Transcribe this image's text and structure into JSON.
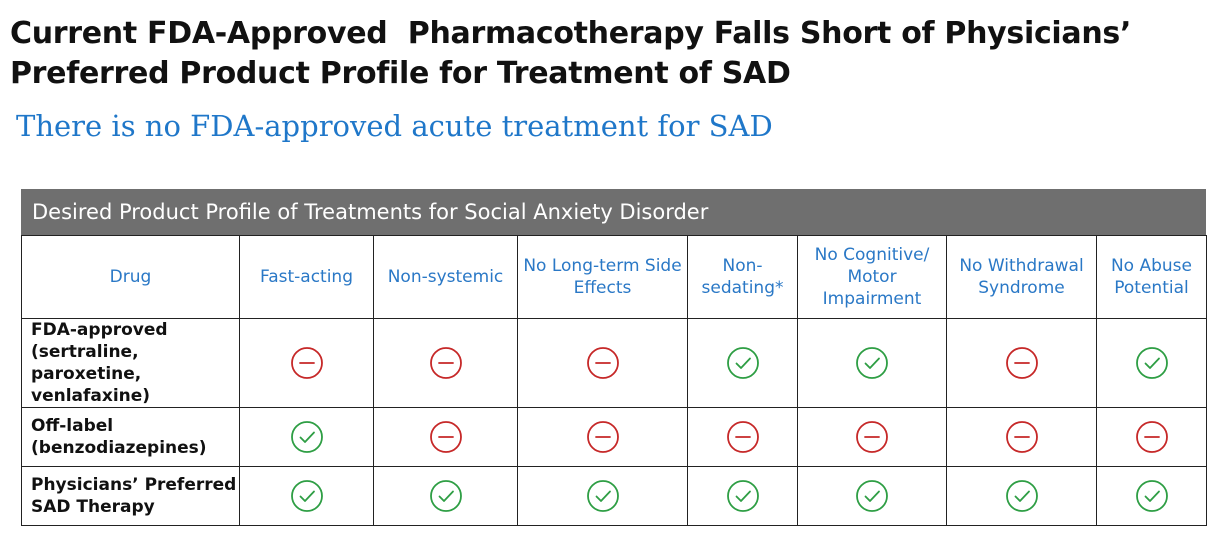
{
  "title": "Current FDA-Approved  Pharmacotherapy Falls Short of Physicians’ Preferred Product Profile for Treatment of SAD",
  "subtitle": "There is no FDA-approved acute treatment for SAD",
  "table": {
    "header": "Desired Product Profile of Treatments for Social Anxiety Disorder",
    "columns": [
      "Drug",
      "Fast-acting",
      "Non-systemic",
      "No Long-term Side Effects",
      "Non-sedating*",
      "No Cognitive/ Motor Impairment",
      "No Withdrawal Syndrome",
      "No Abuse Potential"
    ],
    "rows": [
      {
        "label": "FDA-approved (sertraline, paroxetine, venlafaxine)",
        "values": [
          "minus",
          "minus",
          "minus",
          "check",
          "check",
          "minus",
          "check"
        ]
      },
      {
        "label": "Off-label (benzodiazepines)",
        "values": [
          "check",
          "minus",
          "minus",
          "minus",
          "minus",
          "minus",
          "minus"
        ]
      },
      {
        "label": "Physicians’ Preferred SAD Therapy",
        "values": [
          "check",
          "check",
          "check",
          "check",
          "check",
          "check",
          "check"
        ]
      }
    ],
    "icons": {
      "check": {
        "name": "check-circle-icon",
        "color": "#2e9e44"
      },
      "minus": {
        "name": "minus-circle-icon",
        "color": "#c62828"
      }
    }
  }
}
